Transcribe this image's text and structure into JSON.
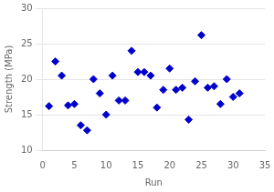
{
  "chart_data": {
    "type": "scatter",
    "x": [
      1,
      2,
      3,
      4,
      5,
      6,
      7,
      8,
      9,
      10,
      11,
      12,
      13,
      14,
      15,
      16,
      17,
      18,
      19,
      20,
      21,
      22,
      23,
      24,
      25,
      26,
      27,
      28,
      29,
      30,
      31
    ],
    "values": [
      16.2,
      22.5,
      20.5,
      16.3,
      16.5,
      13.5,
      12.8,
      20.0,
      18.0,
      15.0,
      20.5,
      17.0,
      17.0,
      24.0,
      21.0,
      21.0,
      20.5,
      16.0,
      18.5,
      21.5,
      18.5,
      18.8,
      14.3,
      19.7,
      26.2,
      18.8,
      19.0,
      16.5,
      20.0,
      17.5,
      18.0
    ],
    "color": "#0000CC",
    "marker": "diamond",
    "xlabel": "Run",
    "ylabel": "Strength (MPa)",
    "xlim": [
      0,
      35
    ],
    "ylim": [
      10,
      30
    ],
    "xticks": [
      0,
      5,
      10,
      15,
      20,
      25,
      30,
      35
    ],
    "yticks": [
      10,
      15,
      20,
      25,
      30
    ],
    "grid": "y"
  }
}
